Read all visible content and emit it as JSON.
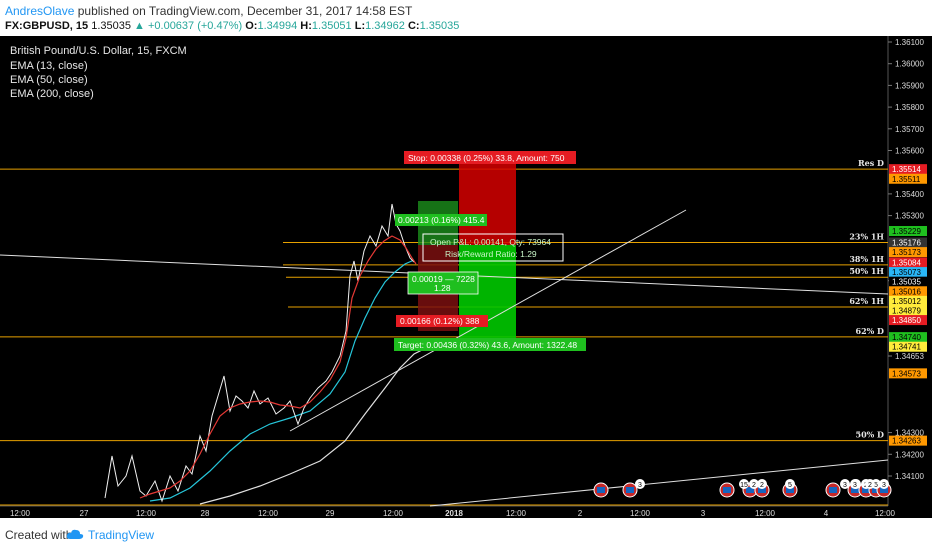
{
  "header": {
    "author": "AndresOlave",
    "published": "published on TradingView.com, December 31, 2017 14:58 EST",
    "symbol": "FX:GBPUSD, 15",
    "last": "1.35035",
    "change": "▲ +0.00637 (+0.47%)",
    "o_label": "O:",
    "o_value": "1.34994",
    "h_label": "H:",
    "h_value": "1.35051",
    "l_label": "L:",
    "l_value": "1.34962",
    "c_label": "C:",
    "c_value": "1.35035"
  },
  "legend": {
    "title": "British Pound/U.S. Dollar, 15, FXCM",
    "ema13": "EMA (13, close)",
    "ema50": "EMA (50, close)",
    "ema200": "EMA (200, close)"
  },
  "footer": {
    "created": "Created with",
    "brand": "TradingView"
  },
  "colors": {
    "background": "#000000",
    "price": "#f0f0f0",
    "ema13": "#e53935",
    "ema50": "#26c6da",
    "ema200": "#e0e0e0",
    "gold": "#e6a100",
    "stop": "#e51c23",
    "target": "#1fbf1f"
  },
  "chart_data": {
    "type": "line",
    "symbol": "GBPUSD",
    "interval": "15",
    "ylim": [
      1.3408,
      1.3612
    ],
    "y_ticks": [
      "1.36100",
      "1.36000",
      "1.35900",
      "1.35800",
      "1.35700",
      "1.35600",
      "1.35400",
      "1.35300",
      "1.35000",
      "1.34653",
      "1.34300",
      "1.34200",
      "1.34100"
    ],
    "x_ticks": [
      "12:00",
      "27",
      "12:00",
      "28",
      "12:00",
      "29",
      "12:00",
      "2018",
      "12:00",
      "2",
      "12:00",
      "3",
      "12:00",
      "4",
      "12:00"
    ],
    "price_labels": [
      {
        "value": "1.35514",
        "color": "#e51c23"
      },
      {
        "value": "1.35511",
        "color": "#ff9800"
      },
      {
        "value": "1.35229",
        "color": "#1fbf1f"
      },
      {
        "value": "1.35176",
        "color": "#333333"
      },
      {
        "value": "1.35173",
        "color": "#ff9800"
      },
      {
        "value": "1.35084",
        "color": "#e51c23"
      },
      {
        "value": "1.35073",
        "color": "#29b6f6"
      },
      {
        "value": "1.35035",
        "color": "#000000"
      },
      {
        "value": "1.35016",
        "color": "#ff9800"
      },
      {
        "value": "1.35012",
        "color": "#ffeb3b"
      },
      {
        "value": "1.34879",
        "color": "#ffeb3b"
      },
      {
        "value": "1.34850",
        "color": "#e51c23"
      },
      {
        "value": "1.34740",
        "color": "#1fbf1f"
      },
      {
        "value": "1.34741",
        "color": "#ffeb3b"
      },
      {
        "value": "1.34573",
        "color": "#ff9800"
      },
      {
        "value": "1.34263",
        "color": "#ff9800"
      }
    ],
    "levels": [
      {
        "label": "Res D",
        "value": 1.35514
      },
      {
        "label": "23% 1H",
        "value": 1.35176
      },
      {
        "label": "38% 1H",
        "value": 1.35073
      },
      {
        "label": "50% 1H",
        "value": 1.35016
      },
      {
        "label": "62% 1H",
        "value": 1.34879
      },
      {
        "label": "62% D",
        "value": 1.34741
      },
      {
        "label": "50% D",
        "value": 1.34263
      }
    ],
    "position": {
      "stop_label": "Stop: 0.00338 (0.25%) 33.8, Amount: 750",
      "target_label": "Target: 0.00436 (0.32%) 43.6, Amount: 1322.48",
      "open_pl": "Open P&L: 0.00141, Qty: 73964",
      "rr_ratio": "Risk/Reward Ratio: 1.29",
      "long_box_top": "0.00213 (0.16%) 415.4",
      "long_box_mid_1": "0.00019 — 7228",
      "long_box_mid_2": "1.28",
      "short_box": "0.00166 (0.12%) 388"
    },
    "event_counts": [
      "3",
      "15",
      "2",
      "2",
      "5",
      "3",
      "2",
      "5",
      "3",
      "2",
      "3",
      "2"
    ]
  }
}
